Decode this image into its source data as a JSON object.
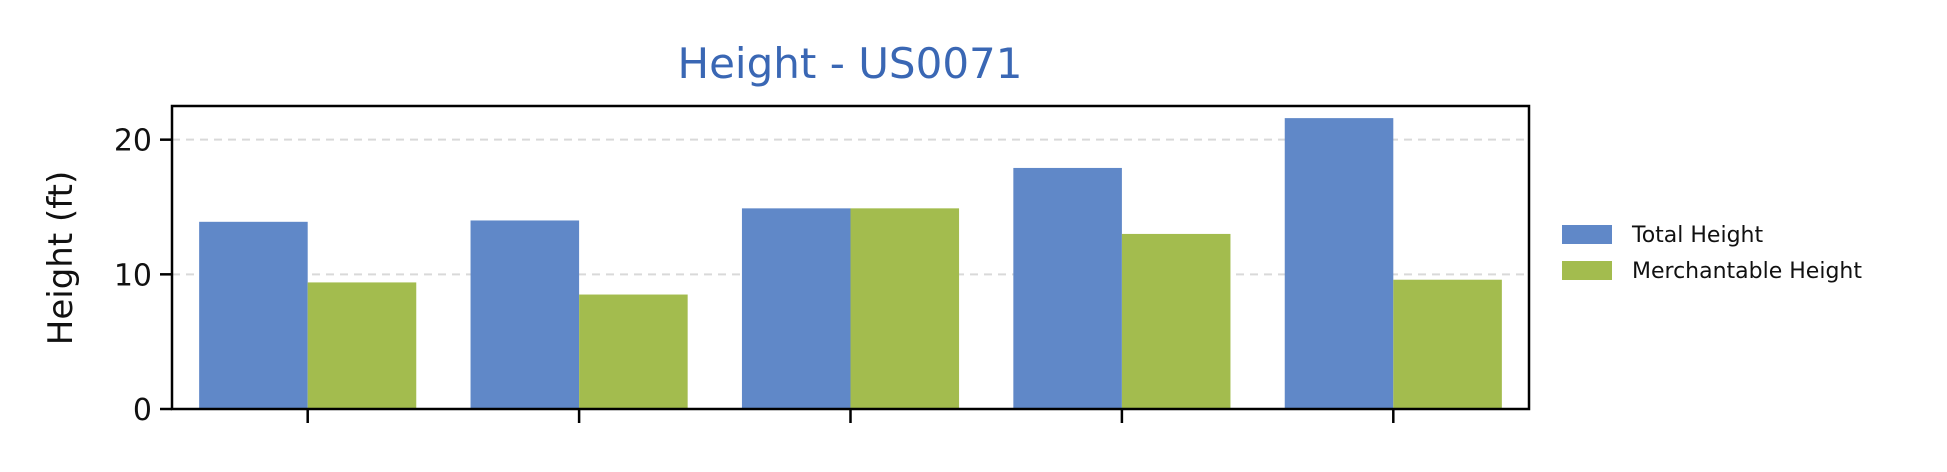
{
  "chart_data": {
    "type": "bar",
    "title": "Height - US0071",
    "xlabel": "",
    "ylabel": "Height (ft)",
    "ylim": [
      0,
      22.5
    ],
    "yticks": [
      0,
      10,
      20
    ],
    "grid": true,
    "legend_position": "right",
    "categories": [
      "",
      "",
      "",
      "",
      ""
    ],
    "series": [
      {
        "name": "Total Height",
        "color": "#6088c8",
        "values": [
          13.9,
          14.0,
          14.9,
          17.9,
          21.6
        ]
      },
      {
        "name": "Merchantable Height",
        "color": "#a3bc4e",
        "values": [
          9.4,
          8.5,
          14.9,
          13.0,
          9.6
        ]
      }
    ]
  }
}
